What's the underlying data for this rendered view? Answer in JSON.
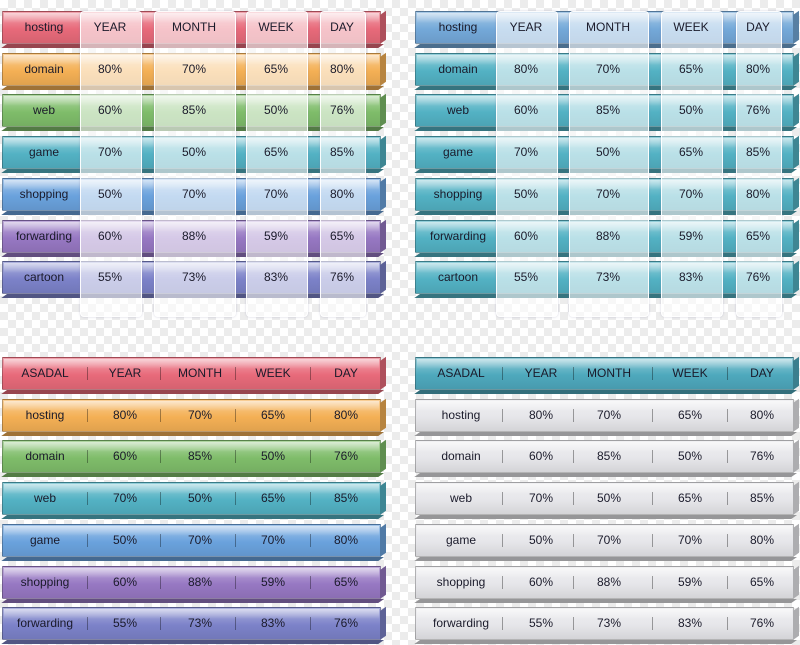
{
  "colors": {
    "red": "#e86a7a",
    "orange": "#f4b055",
    "green": "#7fbd6a",
    "teal": "#53b2c4",
    "blue": "#6aa2dd",
    "purple": "#9778c3",
    "indigo": "#7c82c9",
    "steelblue": "#74a9d9",
    "tealhead": "#4ea9bd",
    "silver": "#e6e6ea"
  },
  "panel1": {
    "header": {
      "label": "hosting",
      "cols": [
        "YEAR",
        "MONTH",
        "WEEK",
        "DAY"
      ]
    },
    "rows": [
      {
        "label": "domain",
        "values": [
          "80%",
          "70%",
          "65%",
          "80%"
        ]
      },
      {
        "label": "web",
        "values": [
          "60%",
          "85%",
          "50%",
          "76%"
        ]
      },
      {
        "label": "game",
        "values": [
          "70%",
          "50%",
          "65%",
          "85%"
        ]
      },
      {
        "label": "shopping",
        "values": [
          "50%",
          "70%",
          "70%",
          "80%"
        ]
      },
      {
        "label": "forwarding",
        "values": [
          "60%",
          "88%",
          "59%",
          "65%"
        ]
      },
      {
        "label": "cartoon",
        "values": [
          "55%",
          "73%",
          "83%",
          "76%"
        ]
      }
    ]
  },
  "panel2": {
    "header": {
      "label": "hosting",
      "cols": [
        "YEAR",
        "MONTH",
        "WEEK",
        "DAY"
      ]
    },
    "rows": [
      {
        "label": "domain",
        "values": [
          "80%",
          "70%",
          "65%",
          "80%"
        ]
      },
      {
        "label": "web",
        "values": [
          "60%",
          "85%",
          "50%",
          "76%"
        ]
      },
      {
        "label": "game",
        "values": [
          "70%",
          "50%",
          "65%",
          "85%"
        ]
      },
      {
        "label": "shopping",
        "values": [
          "50%",
          "70%",
          "70%",
          "80%"
        ]
      },
      {
        "label": "forwarding",
        "values": [
          "60%",
          "88%",
          "59%",
          "65%"
        ]
      },
      {
        "label": "cartoon",
        "values": [
          "55%",
          "73%",
          "83%",
          "76%"
        ]
      }
    ]
  },
  "panel3": {
    "header": {
      "label": "ASADAL",
      "cols": [
        "YEAR",
        "MONTH",
        "WEEK",
        "DAY"
      ]
    },
    "rows": [
      {
        "label": "hosting",
        "values": [
          "80%",
          "70%",
          "65%",
          "80%"
        ]
      },
      {
        "label": "domain",
        "values": [
          "60%",
          "85%",
          "50%",
          "76%"
        ]
      },
      {
        "label": "web",
        "values": [
          "70%",
          "50%",
          "65%",
          "85%"
        ]
      },
      {
        "label": "game",
        "values": [
          "50%",
          "70%",
          "70%",
          "80%"
        ]
      },
      {
        "label": "shopping",
        "values": [
          "60%",
          "88%",
          "59%",
          "65%"
        ]
      },
      {
        "label": "forwarding",
        "values": [
          "55%",
          "73%",
          "83%",
          "76%"
        ]
      }
    ]
  },
  "panel4": {
    "header": {
      "label": "ASADAL",
      "cols": [
        "YEAR",
        "MONTH",
        "WEEK",
        "DAY"
      ]
    },
    "rows": [
      {
        "label": "hosting",
        "values": [
          "80%",
          "70%",
          "65%",
          "80%"
        ]
      },
      {
        "label": "domain",
        "values": [
          "60%",
          "85%",
          "50%",
          "76%"
        ]
      },
      {
        "label": "web",
        "values": [
          "70%",
          "50%",
          "65%",
          "85%"
        ]
      },
      {
        "label": "game",
        "values": [
          "50%",
          "70%",
          "70%",
          "80%"
        ]
      },
      {
        "label": "shopping",
        "values": [
          "60%",
          "88%",
          "59%",
          "65%"
        ]
      },
      {
        "label": "forwarding",
        "values": [
          "55%",
          "73%",
          "83%",
          "76%"
        ]
      }
    ]
  }
}
